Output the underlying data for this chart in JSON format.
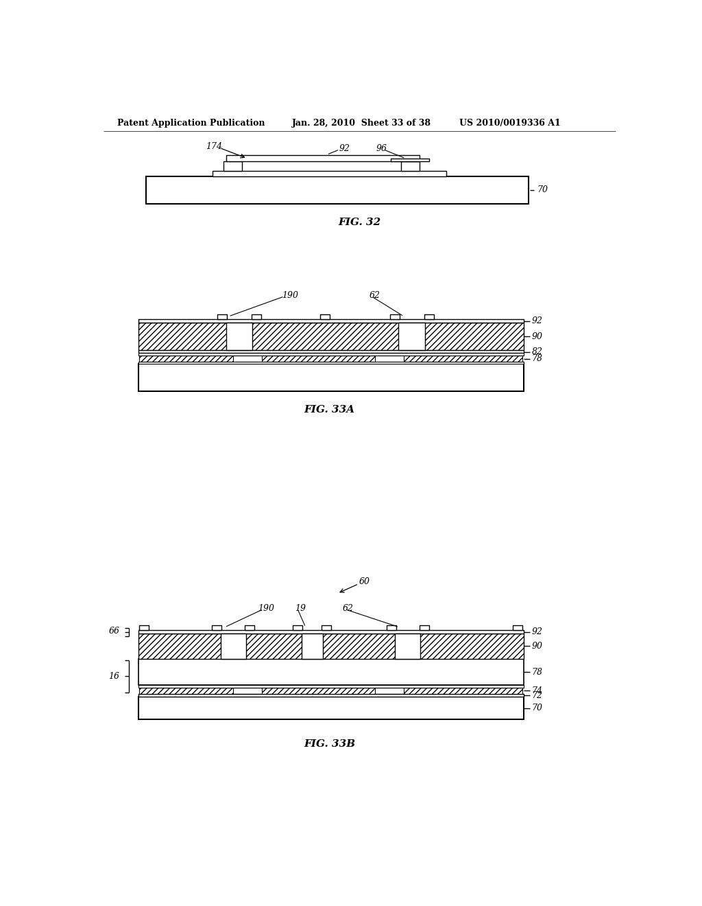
{
  "background_color": "#ffffff",
  "header_left": "Patent Application Publication",
  "header_mid": "Jan. 28, 2010  Sheet 33 of 38",
  "header_right": "US 2010/0019336 A1",
  "fig32_caption": "FIG. 32",
  "fig33a_caption": "FIG. 33A",
  "fig33b_caption": "FIG. 33B"
}
